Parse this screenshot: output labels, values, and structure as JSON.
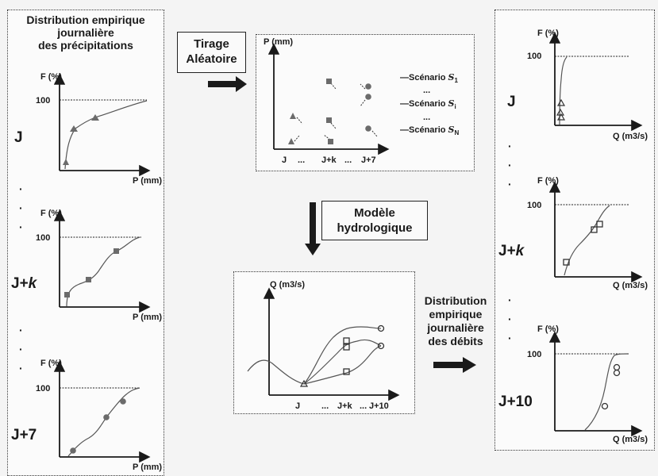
{
  "left_panel": {
    "title_lines": [
      "Distribution empirique",
      "journalière",
      "des précipitations"
    ],
    "day_labels": {
      "j": "J",
      "jk_prefix": "J+",
      "jk_italic": "k",
      "j7": "J+7"
    },
    "dots": [
      "·",
      "·",
      "·"
    ],
    "plots": [
      {
        "y_label": "F (%)",
        "y_tick": "100",
        "x_label": "P (mm)"
      },
      {
        "y_label": "F (%)",
        "y_tick": "100",
        "x_label": "P (mm)"
      },
      {
        "y_label": "F (%)",
        "y_tick": "100",
        "x_label": "P (mm)"
      }
    ]
  },
  "tirage_box": {
    "lines": [
      "Tirage",
      "Aléatoire"
    ]
  },
  "scenario_panel": {
    "y_label": "P (mm)",
    "x_ticks": [
      "J",
      "...",
      "J+k",
      "...",
      "J+7"
    ],
    "scenarios": [
      {
        "label": "—Scénario ",
        "sym": "S",
        "sub": "1"
      },
      {
        "label": "—Scénario ",
        "sym": "S",
        "sub": "i"
      },
      {
        "label": "—Scénario ",
        "sym": "S",
        "sub": "N"
      }
    ],
    "between_dots": [
      "...",
      "..."
    ]
  },
  "modele_box": {
    "lines": [
      "Modèle",
      "hydrologique"
    ]
  },
  "hydro_panel": {
    "y_label": "Q (m3/s)",
    "x_ticks": [
      "J",
      "...",
      "J+k",
      "...",
      "J+10"
    ]
  },
  "debits_label": {
    "lines": [
      "Distribution",
      "empirique",
      "journalière",
      "des débits"
    ]
  },
  "right_panel": {
    "day_labels": {
      "j": "J",
      "jk_prefix": "J+",
      "jk_italic": "k",
      "j10": "J+10"
    },
    "dots": [
      "·",
      "·",
      "·"
    ],
    "plots": [
      {
        "y_label": "F (%)",
        "y_tick": "100",
        "x_label": "Q (m3/s)"
      },
      {
        "y_label": "F (%)",
        "y_tick": "100",
        "x_label": "Q (m3/s)"
      },
      {
        "y_label": "F (%)",
        "y_tick": "100",
        "x_label": "Q (m3/s)"
      }
    ]
  },
  "colors": {
    "marker": "#6b6b6b",
    "line": "#555555",
    "ink": "#1a1a1a"
  }
}
